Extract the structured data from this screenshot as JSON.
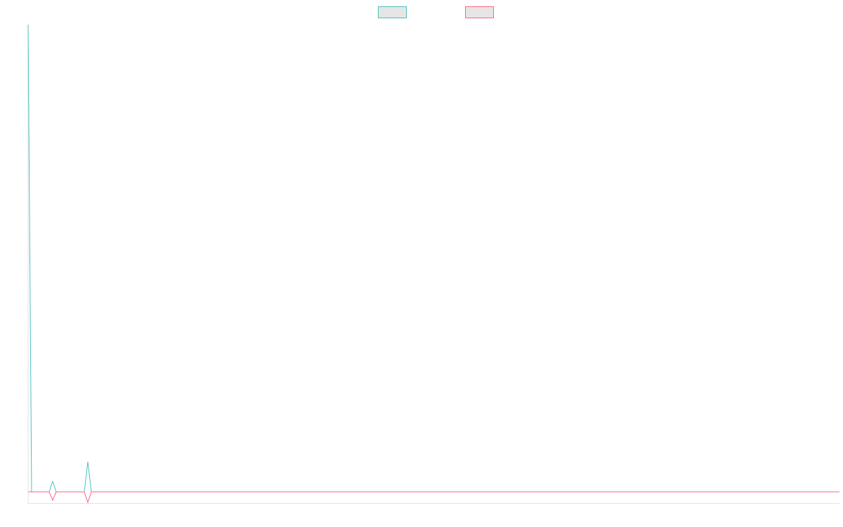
{
  "chart_data": {
    "type": "line",
    "x": [
      0,
      1,
      6,
      7,
      8,
      16,
      17,
      18,
      231
    ],
    "series": [
      {
        "color": "#4bc0c0",
        "values": [
          666,
          0,
          0,
          15,
          0,
          0,
          43,
          0,
          0
        ]
      },
      {
        "color": "#ff6384",
        "values": [
          0,
          0,
          0,
          -12,
          0,
          0,
          -15,
          0,
          0
        ]
      }
    ],
    "xlim": [
      0,
      231
    ],
    "ylim": [
      -16,
      666
    ],
    "grid": false,
    "legend": "top"
  }
}
